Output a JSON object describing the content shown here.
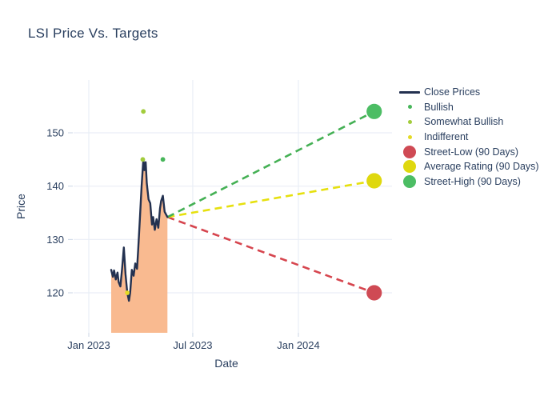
{
  "chart_data": {
    "type": "line",
    "title": "LSI Price Vs. Targets",
    "xlabel": "Date",
    "ylabel": "Price",
    "grid": true,
    "grid_color": "#e9eef6",
    "text_color": "#2a3f5f",
    "x_axis": {
      "ticks": [
        {
          "date": "2023-01-01",
          "label": "Jan 2023"
        },
        {
          "date": "2023-07-01",
          "label": "Jul 2023"
        },
        {
          "date": "2024-01-01",
          "label": "Jan 2024"
        }
      ]
    },
    "y_axis": {
      "ticks": [
        {
          "value": 120,
          "label": "120"
        },
        {
          "value": 130,
          "label": "130"
        },
        {
          "value": 140,
          "label": "140"
        },
        {
          "value": 150,
          "label": "150"
        }
      ],
      "range": [
        112.5,
        160
      ]
    },
    "close_prices": {
      "name": "Close Prices",
      "line_color": "#233150",
      "fill_color": "#f9ba90",
      "points": [
        [
          "2023-02-09",
          124.3
        ],
        [
          "2023-02-12",
          123.0
        ],
        [
          "2023-02-14",
          124.2
        ],
        [
          "2023-02-17",
          122.5
        ],
        [
          "2023-02-20",
          123.8
        ],
        [
          "2023-02-22",
          122.0
        ],
        [
          "2023-02-25",
          121.2
        ],
        [
          "2023-02-28",
          124.5
        ],
        [
          "2023-03-03",
          128.5
        ],
        [
          "2023-03-06",
          123.5
        ],
        [
          "2023-03-09",
          120.0
        ],
        [
          "2023-03-12",
          118.5
        ],
        [
          "2023-03-14",
          120.0
        ],
        [
          "2023-03-17",
          124.3
        ],
        [
          "2023-03-20",
          123.2
        ],
        [
          "2023-03-23",
          125.5
        ],
        [
          "2023-03-26",
          124.5
        ],
        [
          "2023-03-28",
          128.0
        ],
        [
          "2023-03-31",
          134.0
        ],
        [
          "2023-04-03",
          140.0
        ],
        [
          "2023-04-06",
          145.0
        ],
        [
          "2023-04-08",
          143.0
        ],
        [
          "2023-04-10",
          144.5
        ],
        [
          "2023-04-12",
          140.5
        ],
        [
          "2023-04-15",
          137.5
        ],
        [
          "2023-04-18",
          136.8
        ],
        [
          "2023-04-21",
          132.8
        ],
        [
          "2023-04-23",
          134.2
        ],
        [
          "2023-04-26",
          131.8
        ],
        [
          "2023-04-29",
          133.8
        ],
        [
          "2023-05-02",
          132.2
        ],
        [
          "2023-05-05",
          135.8
        ],
        [
          "2023-05-07",
          137.2
        ],
        [
          "2023-05-10",
          138.2
        ],
        [
          "2023-05-13",
          135.2
        ],
        [
          "2023-05-16",
          134.6
        ],
        [
          "2023-05-18",
          134.2
        ]
      ]
    },
    "ratings": [
      {
        "id": "indifferent",
        "label": "Indifferent",
        "date": "2023-03-09",
        "value": 120,
        "color": "#e4da25"
      },
      {
        "id": "somewhat-bullish",
        "label": "Somewhat Bullish",
        "date": "2023-04-05",
        "value": 145,
        "color": "#a2cc3c"
      },
      {
        "id": "somewhat-bullish",
        "label": "Somewhat Bullish",
        "date": "2023-04-06",
        "value": 154,
        "color": "#a2cc3c"
      },
      {
        "id": "bullish",
        "label": "Bullish",
        "date": "2023-05-10",
        "value": 145,
        "color": "#47b65a"
      }
    ],
    "targets": {
      "anchor": {
        "date": "2023-05-18",
        "value": 134.2
      },
      "items": [
        {
          "id": "street-low",
          "label": "Street-Low (90 Days)",
          "date": "2024-05-12",
          "value": 120,
          "dot_color": "#cf4a54",
          "line_color": "#d6454e"
        },
        {
          "id": "average-rating",
          "label": "Average Rating (90 Days)",
          "date": "2024-05-12",
          "value": 141,
          "dot_color": "#dfd80e",
          "line_color": "#e6e00e"
        },
        {
          "id": "street-high",
          "label": "Street-High (90 Days)",
          "date": "2024-05-12",
          "value": 154,
          "dot_color": "#4cbd64",
          "line_color": "#44b054"
        }
      ]
    },
    "legend": {
      "position": "right",
      "items": [
        {
          "id": "close-prices",
          "label": "Close Prices",
          "type": "line",
          "color": "#233150"
        },
        {
          "id": "bullish",
          "label": "Bullish",
          "type": "dot-small",
          "color": "#47b65a"
        },
        {
          "id": "somewhat-bullish",
          "label": "Somewhat Bullish",
          "type": "dot-small",
          "color": "#a2cc3c"
        },
        {
          "id": "indifferent",
          "label": "Indifferent",
          "type": "dot-small",
          "color": "#e4da25"
        },
        {
          "id": "street-low",
          "label": "Street-Low (90 Days)",
          "type": "dot-large",
          "color": "#cf4a54"
        },
        {
          "id": "average-rating",
          "label": "Average Rating (90 Days)",
          "type": "dot-large",
          "color": "#dfd80e"
        },
        {
          "id": "street-high",
          "label": "Street-High (90 Days)",
          "type": "dot-large",
          "color": "#4cbd64"
        }
      ]
    }
  }
}
